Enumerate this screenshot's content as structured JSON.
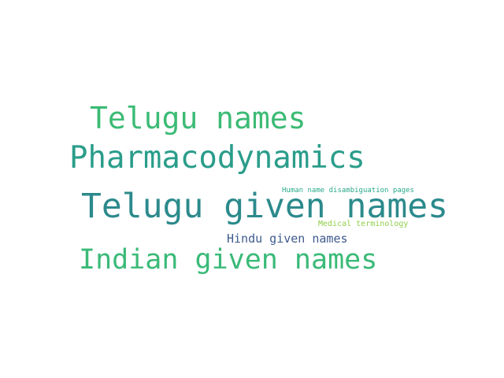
{
  "word_cloud": {
    "words": [
      {
        "text": "Telugu given names",
        "color": "#2c8a8c"
      },
      {
        "text": "Pharmacodynamics",
        "color": "#2a9d8a"
      },
      {
        "text": "Telugu names",
        "color": "#3cbb75"
      },
      {
        "text": "Indian given names",
        "color": "#3aba78"
      },
      {
        "text": "Hindu given names",
        "color": "#3e5a8c"
      },
      {
        "text": "Human name disambiguation pages",
        "color": "#29a98a"
      },
      {
        "text": "Medical terminology",
        "color": "#8fcf4a"
      }
    ]
  }
}
